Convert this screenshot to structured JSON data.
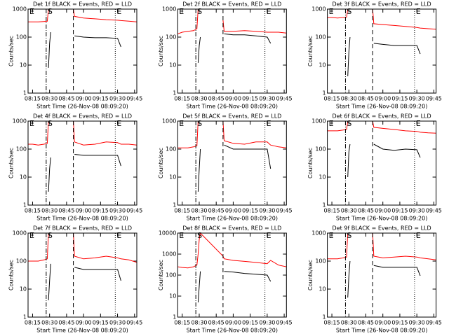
{
  "chart_data": [
    {
      "type": "line",
      "title": "Det 1f BLACK = Events, RED = LLD",
      "xlabel": "Start Time (26-Nov-08 08:09:20)",
      "ylabel": "Counts/sec",
      "log": true,
      "x": [
        "08:11",
        "08:15",
        "08:20",
        "08:25",
        "08:28",
        "08:29",
        "08:30",
        "08:31",
        "08:51",
        "08:52",
        "09:00",
        "09:10",
        "09:20",
        "09:30",
        "09:33",
        "09:40",
        "09:47"
      ],
      "series": [
        {
          "color": "#ff0000",
          "values": [
            350,
            350,
            350,
            360,
            370,
            1000,
            null,
            null,
            1000,
            550,
            480,
            450,
            420,
            400,
            390,
            370,
            350
          ]
        },
        {
          "color": "#000000",
          "values": [
            null,
            null,
            null,
            null,
            null,
            8,
            60,
            150,
            null,
            110,
            100,
            95,
            95,
            90,
            45,
            null,
            null
          ]
        }
      ],
      "xlim": [
        "08:11",
        "09:47"
      ],
      "xticks": [
        "08:15",
        "08:30",
        "08:45",
        "09:00",
        "09:15",
        "09:30",
        "09:45"
      ],
      "ylim": [
        1,
        1000
      ],
      "yticks": [
        1,
        10,
        100,
        1000
      ],
      "vlines": [
        {
          "x": "08:27",
          "style": "dashdot"
        },
        {
          "x": "08:51",
          "style": "dashed"
        },
        {
          "x": "09:28",
          "style": "dotted"
        }
      ],
      "annotations": [
        {
          "x": "08:11",
          "text": "E"
        },
        {
          "x": "08:27",
          "text": "S"
        },
        {
          "x": "09:28",
          "text": "E"
        }
      ]
    },
    {
      "type": "line",
      "title": "Det 2f BLACK = Events, RED = LLD",
      "xlabel": "Start Time (26-Nov-08 08:09:20)",
      "ylabel": "Counts/sec",
      "log": true,
      "x": [
        "08:11",
        "08:15",
        "08:20",
        "08:25",
        "08:28",
        "08:29",
        "08:30",
        "08:31",
        "08:51",
        "08:52",
        "09:00",
        "09:10",
        "09:20",
        "09:30",
        "09:33",
        "09:40",
        "09:47"
      ],
      "series": [
        {
          "color": "#ff0000",
          "values": [
            130,
            150,
            160,
            170,
            200,
            1000,
            null,
            null,
            400,
            160,
            160,
            170,
            160,
            150,
            150,
            150,
            140
          ]
        },
        {
          "color": "#000000",
          "values": [
            null,
            null,
            null,
            null,
            null,
            12,
            50,
            100,
            null,
            130,
            120,
            120,
            110,
            100,
            60,
            null,
            null
          ]
        }
      ],
      "xlim": [
        "08:11",
        "09:47"
      ],
      "xticks": [
        "08:15",
        "08:30",
        "08:45",
        "09:00",
        "09:15",
        "09:30",
        "09:45"
      ],
      "ylim": [
        1,
        1000
      ],
      "yticks": [
        1,
        10,
        100,
        1000
      ],
      "vlines": [
        {
          "x": "08:27",
          "style": "dashdot"
        },
        {
          "x": "08:51",
          "style": "dashed"
        },
        {
          "x": "09:28",
          "style": "dotted"
        }
      ],
      "annotations": [
        {
          "x": "08:11",
          "text": "E"
        },
        {
          "x": "08:27",
          "text": "S"
        },
        {
          "x": "09:28",
          "text": "E"
        }
      ]
    },
    {
      "type": "line",
      "title": "Det 3f BLACK = Events, RED = LLD",
      "xlabel": "Start Time (26-Nov-08 08:09:20)",
      "ylabel": "Counts/sec",
      "log": true,
      "x": [
        "08:11",
        "08:15",
        "08:20",
        "08:25",
        "08:28",
        "08:29",
        "08:30",
        "08:31",
        "08:51",
        "08:52",
        "09:00",
        "09:10",
        "09:20",
        "09:30",
        "09:33",
        "09:40",
        "09:47"
      ],
      "series": [
        {
          "color": "#ff0000",
          "values": [
            500,
            500,
            480,
            500,
            520,
            1000,
            null,
            null,
            1000,
            300,
            280,
            260,
            240,
            220,
            210,
            200,
            190
          ]
        },
        {
          "color": "#000000",
          "values": [
            null,
            null,
            null,
            null,
            null,
            4,
            30,
            100,
            null,
            60,
            55,
            50,
            50,
            50,
            25,
            null,
            null
          ]
        }
      ],
      "xlim": [
        "08:11",
        "09:47"
      ],
      "xticks": [
        "08:15",
        "08:30",
        "08:45",
        "09:00",
        "09:15",
        "09:30",
        "09:45"
      ],
      "ylim": [
        1,
        1000
      ],
      "yticks": [
        1,
        10,
        100,
        1000
      ],
      "vlines": [
        {
          "x": "08:27",
          "style": "dashdot"
        },
        {
          "x": "08:51",
          "style": "dashed"
        },
        {
          "x": "09:28",
          "style": "dotted"
        }
      ],
      "annotations": [
        {
          "x": "08:11",
          "text": "E"
        },
        {
          "x": "08:27",
          "text": "S"
        },
        {
          "x": "09:28",
          "text": "E"
        }
      ]
    },
    {
      "type": "line",
      "title": "Det 4f BLACK = Events, RED = LLD",
      "xlabel": "Start Time (26-Nov-08 08:09:20)",
      "ylabel": "Counts/sec",
      "log": true,
      "x": [
        "08:11",
        "08:15",
        "08:20",
        "08:25",
        "08:28",
        "08:29",
        "08:30",
        "08:31",
        "08:51",
        "08:52",
        "09:00",
        "09:10",
        "09:20",
        "09:30",
        "09:33",
        "09:40",
        "09:47"
      ],
      "series": [
        {
          "color": "#ff0000",
          "values": [
            150,
            150,
            140,
            150,
            160,
            1000,
            null,
            null,
            1000,
            180,
            140,
            150,
            180,
            170,
            150,
            150,
            140
          ]
        },
        {
          "color": "#000000",
          "values": [
            null,
            null,
            null,
            null,
            null,
            3,
            20,
            50,
            null,
            65,
            60,
            60,
            60,
            60,
            25,
            null,
            null
          ]
        }
      ],
      "xlim": [
        "08:11",
        "09:47"
      ],
      "xticks": [
        "08:15",
        "08:30",
        "08:45",
        "09:00",
        "09:15",
        "09:30",
        "09:45"
      ],
      "ylim": [
        1,
        1000
      ],
      "yticks": [
        1,
        10,
        100,
        1000
      ],
      "vlines": [
        {
          "x": "08:27",
          "style": "dashdot"
        },
        {
          "x": "08:51",
          "style": "dashed"
        },
        {
          "x": "09:28",
          "style": "dotted"
        }
      ],
      "annotations": [
        {
          "x": "08:11",
          "text": "E"
        },
        {
          "x": "08:27",
          "text": "S"
        },
        {
          "x": "09:28",
          "text": "E"
        }
      ]
    },
    {
      "type": "line",
      "title": "Det 5f BLACK = Events, RED = LLD",
      "xlabel": "Start Time (26-Nov-08 08:09:20)",
      "ylabel": "Counts/sec",
      "log": true,
      "x": [
        "08:11",
        "08:15",
        "08:20",
        "08:25",
        "08:28",
        "08:29",
        "08:30",
        "08:31",
        "08:51",
        "08:52",
        "09:00",
        "09:10",
        "09:20",
        "09:30",
        "09:33",
        "09:40",
        "09:47"
      ],
      "series": [
        {
          "color": "#ff0000",
          "values": [
            110,
            110,
            110,
            120,
            130,
            1000,
            null,
            null,
            1000,
            200,
            160,
            150,
            180,
            180,
            140,
            120,
            110
          ]
        },
        {
          "color": "#000000",
          "values": [
            null,
            null,
            null,
            null,
            null,
            3,
            20,
            100,
            null,
            140,
            100,
            100,
            100,
            100,
            20,
            null,
            null
          ]
        }
      ],
      "xlim": [
        "08:11",
        "09:47"
      ],
      "xticks": [
        "08:15",
        "08:30",
        "08:45",
        "09:00",
        "09:15",
        "09:30",
        "09:45"
      ],
      "ylim": [
        1,
        1000
      ],
      "yticks": [
        1,
        10,
        100,
        1000
      ],
      "vlines": [
        {
          "x": "08:27",
          "style": "dashdot"
        },
        {
          "x": "08:51",
          "style": "dashed"
        },
        {
          "x": "09:28",
          "style": "dotted"
        }
      ],
      "annotations": [
        {
          "x": "08:11",
          "text": "E"
        },
        {
          "x": "08:27",
          "text": "S"
        },
        {
          "x": "09:28",
          "text": "E"
        }
      ]
    },
    {
      "type": "line",
      "title": "Det 6f BLACK = Events, RED = LLD",
      "xlabel": "Start Time (26-Nov-08 08:09:20)",
      "ylabel": "Counts/sec",
      "log": true,
      "x": [
        "08:11",
        "08:15",
        "08:20",
        "08:25",
        "08:28",
        "08:29",
        "08:30",
        "08:31",
        "08:51",
        "08:52",
        "09:00",
        "09:10",
        "09:20",
        "09:30",
        "09:33",
        "09:40",
        "09:47"
      ],
      "series": [
        {
          "color": "#ff0000",
          "values": [
            450,
            450,
            450,
            480,
            500,
            1000,
            null,
            null,
            1000,
            600,
            550,
            500,
            450,
            430,
            400,
            380,
            370
          ]
        },
        {
          "color": "#000000",
          "values": [
            null,
            null,
            null,
            null,
            null,
            10,
            80,
            150,
            null,
            150,
            100,
            90,
            100,
            95,
            50,
            null,
            null
          ]
        }
      ],
      "xlim": [
        "08:11",
        "09:47"
      ],
      "xticks": [
        "08:15",
        "08:30",
        "08:45",
        "09:00",
        "09:15",
        "09:30",
        "09:45"
      ],
      "ylim": [
        1,
        1000
      ],
      "yticks": [
        1,
        10,
        100,
        1000
      ],
      "vlines": [
        {
          "x": "08:27",
          "style": "dashdot"
        },
        {
          "x": "08:51",
          "style": "dashed"
        },
        {
          "x": "09:28",
          "style": "dotted"
        }
      ],
      "annotations": [
        {
          "x": "08:11",
          "text": "E"
        },
        {
          "x": "08:27",
          "text": "S"
        },
        {
          "x": "09:28",
          "text": "E"
        }
      ]
    },
    {
      "type": "line",
      "title": "Det 7f BLACK = Events, RED = LLD",
      "xlabel": "Start Time (26-Nov-08 08:09:20)",
      "ylabel": "Counts/sec",
      "log": true,
      "x": [
        "08:11",
        "08:15",
        "08:20",
        "08:25",
        "08:28",
        "08:29",
        "08:30",
        "08:31",
        "08:51",
        "08:52",
        "09:00",
        "09:10",
        "09:20",
        "09:30",
        "09:33",
        "09:40",
        "09:47"
      ],
      "series": [
        {
          "color": "#ff0000",
          "values": [
            100,
            100,
            100,
            110,
            120,
            1000,
            null,
            null,
            1000,
            150,
            120,
            130,
            150,
            130,
            120,
            110,
            90
          ]
        },
        {
          "color": "#000000",
          "values": [
            null,
            null,
            null,
            null,
            null,
            4,
            20,
            80,
            null,
            60,
            50,
            50,
            50,
            50,
            20,
            null,
            null
          ]
        }
      ],
      "xlim": [
        "08:11",
        "09:47"
      ],
      "xticks": [
        "08:15",
        "08:30",
        "08:45",
        "09:00",
        "09:15",
        "09:30",
        "09:45"
      ],
      "ylim": [
        1,
        1000
      ],
      "yticks": [
        1,
        10,
        100,
        1000
      ],
      "vlines": [
        {
          "x": "08:27",
          "style": "dashdot"
        },
        {
          "x": "08:51",
          "style": "dashed"
        },
        {
          "x": "09:28",
          "style": "dotted"
        }
      ],
      "annotations": [
        {
          "x": "08:11",
          "text": "E"
        },
        {
          "x": "08:27",
          "text": "S"
        },
        {
          "x": "09:28",
          "text": "E"
        }
      ]
    },
    {
      "type": "line",
      "title": "Det 8f BLACK = Events, RED = LLD",
      "xlabel": "Start Time (26-Nov-08 08:09:20)",
      "ylabel": "Counts/sec",
      "log": true,
      "x": [
        "08:11",
        "08:15",
        "08:20",
        "08:25",
        "08:28",
        "08:29",
        "08:30",
        "08:31",
        "08:51",
        "08:52",
        "09:00",
        "09:10",
        "09:20",
        "09:30",
        "09:33",
        "09:40",
        "09:47"
      ],
      "series": [
        {
          "color": "#ff0000",
          "values": [
            250,
            230,
            220,
            250,
            300,
            1000,
            5000,
            10000,
            800,
            600,
            500,
            450,
            400,
            350,
            500,
            300,
            250
          ]
        },
        {
          "color": "#000000",
          "values": [
            null,
            null,
            null,
            null,
            null,
            5,
            30,
            150,
            null,
            150,
            140,
            120,
            110,
            100,
            50,
            null,
            null
          ]
        }
      ],
      "xlim": [
        "08:11",
        "09:47"
      ],
      "xticks": [
        "08:15",
        "08:30",
        "08:45",
        "09:00",
        "09:15",
        "09:30",
        "09:45"
      ],
      "ylim": [
        1,
        10000
      ],
      "yticks": [
        1,
        10,
        100,
        1000,
        10000
      ],
      "vlines": [
        {
          "x": "08:27",
          "style": "dashdot"
        },
        {
          "x": "08:51",
          "style": "dashed"
        },
        {
          "x": "09:28",
          "style": "dotted"
        }
      ],
      "annotations": [
        {
          "x": "08:11",
          "text": "E"
        },
        {
          "x": "08:27",
          "text": "S"
        },
        {
          "x": "09:28",
          "text": "E"
        }
      ]
    },
    {
      "type": "line",
      "title": "Det 9f BLACK = Events, RED = LLD",
      "xlabel": "Start Time (26-Nov-08 08:09:20)",
      "ylabel": "Counts/sec",
      "log": true,
      "x": [
        "08:11",
        "08:15",
        "08:20",
        "08:25",
        "08:28",
        "08:29",
        "08:30",
        "08:31",
        "08:51",
        "08:52",
        "09:00",
        "09:10",
        "09:20",
        "09:30",
        "09:33",
        "09:40",
        "09:47"
      ],
      "series": [
        {
          "color": "#ff0000",
          "values": [
            120,
            120,
            120,
            130,
            140,
            1000,
            null,
            null,
            1000,
            150,
            130,
            140,
            150,
            140,
            130,
            120,
            110
          ]
        },
        {
          "color": "#000000",
          "values": [
            null,
            null,
            null,
            null,
            null,
            5,
            30,
            100,
            null,
            70,
            60,
            60,
            60,
            60,
            30,
            null,
            null
          ]
        }
      ],
      "xlim": [
        "08:11",
        "09:47"
      ],
      "xticks": [
        "08:15",
        "08:30",
        "08:45",
        "09:00",
        "09:15",
        "09:30",
        "09:45"
      ],
      "ylim": [
        1,
        1000
      ],
      "yticks": [
        1,
        10,
        100,
        1000
      ],
      "vlines": [
        {
          "x": "08:27",
          "style": "dashdot"
        },
        {
          "x": "08:51",
          "style": "dashed"
        },
        {
          "x": "09:28",
          "style": "dotted"
        }
      ],
      "annotations": [
        {
          "x": "08:11",
          "text": "E"
        },
        {
          "x": "08:27",
          "text": "S"
        },
        {
          "x": "09:28",
          "text": "E"
        }
      ]
    }
  ]
}
